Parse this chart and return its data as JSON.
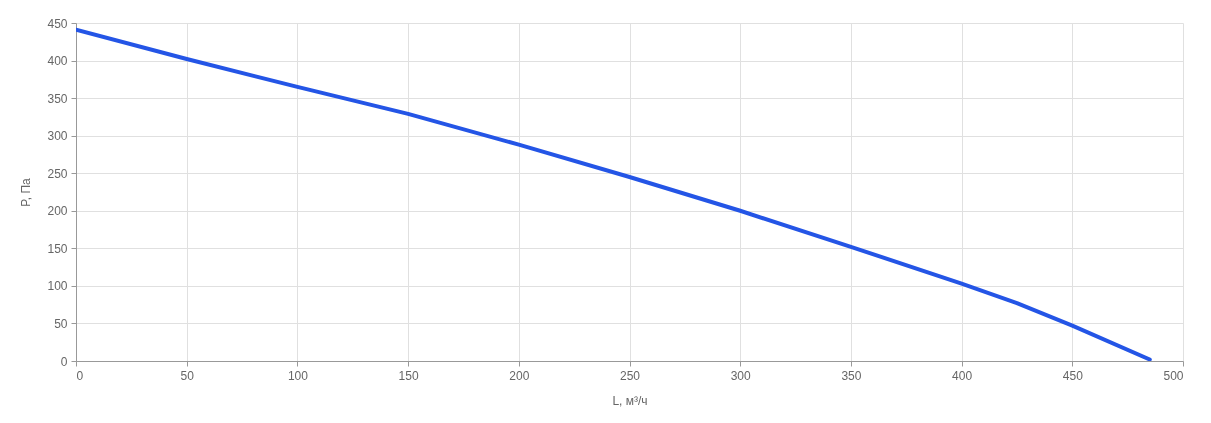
{
  "chart_data": {
    "type": "line",
    "xlabel": "L, м³/ч",
    "ylabel": "P, Па",
    "x": [
      0,
      50,
      100,
      150,
      200,
      250,
      300,
      350,
      400,
      425,
      450,
      485
    ],
    "series": [
      {
        "color": "#2455e6",
        "values": [
          441,
          402,
          365,
          329,
          288,
          245,
          200,
          152,
          103,
          77,
          47,
          2
        ]
      }
    ],
    "xlim": [
      0,
      500
    ],
    "xticks": [
      0,
      50,
      100,
      150,
      200,
      250,
      300,
      350,
      400,
      450,
      500
    ],
    "ylim": [
      0,
      450
    ],
    "yticks": [
      0,
      50,
      100,
      150,
      200,
      250,
      300,
      350,
      400,
      450
    ],
    "grid": true,
    "marker": "none",
    "line_style": "solid"
  }
}
